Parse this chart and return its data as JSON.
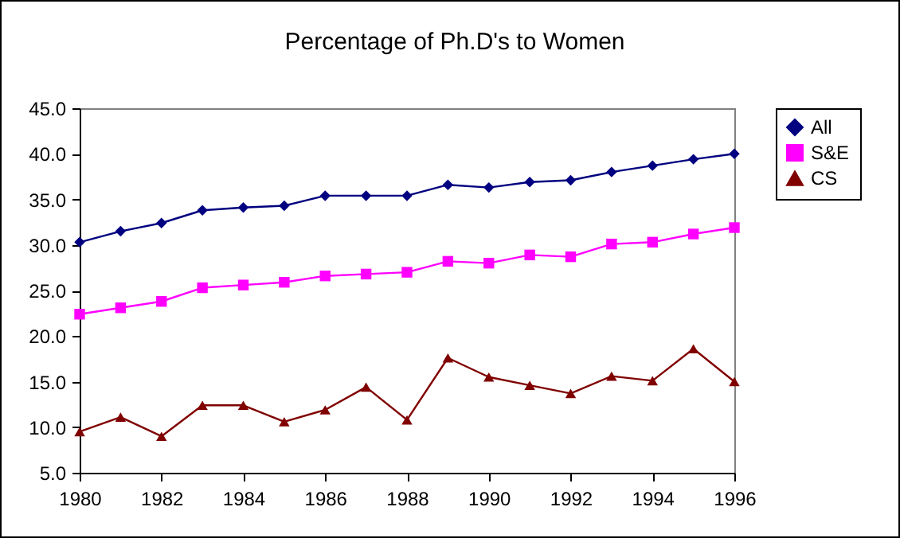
{
  "chart_data": {
    "type": "line",
    "title": "Percentage of Ph.D's to Women",
    "x": [
      1980,
      1981,
      1982,
      1983,
      1984,
      1985,
      1986,
      1987,
      1988,
      1989,
      1990,
      1991,
      1992,
      1993,
      1994,
      1995,
      1996
    ],
    "series": [
      {
        "name": "All",
        "color": "#000080",
        "marker": "diamond",
        "values": [
          30.3,
          31.5,
          32.4,
          33.8,
          34.1,
          34.3,
          35.4,
          35.4,
          35.4,
          36.6,
          36.3,
          36.9,
          37.1,
          38.0,
          38.7,
          39.4,
          40.0
        ]
      },
      {
        "name": "S&E",
        "color": "#ff00ff",
        "marker": "square",
        "values": [
          22.4,
          23.1,
          23.8,
          25.3,
          25.6,
          25.9,
          26.6,
          26.8,
          27.0,
          28.2,
          28.0,
          28.9,
          28.7,
          30.1,
          30.3,
          31.2,
          31.9
        ]
      },
      {
        "name": "CS",
        "color": "#800000",
        "marker": "triangle",
        "values": [
          9.5,
          11.1,
          9.0,
          12.4,
          12.4,
          10.6,
          11.9,
          14.4,
          10.8,
          17.6,
          15.5,
          14.6,
          13.7,
          15.6,
          15.1,
          18.6,
          15.0
        ]
      }
    ],
    "xlim": [
      1980,
      1996
    ],
    "xticks": [
      1980,
      1982,
      1984,
      1986,
      1988,
      1990,
      1992,
      1994,
      1996
    ],
    "ylim": [
      5,
      45
    ],
    "yticks": [
      {
        "value": 5,
        "label": "5.0"
      },
      {
        "value": 10,
        "label": "10.0"
      },
      {
        "value": 15,
        "label": "15.0"
      },
      {
        "value": 20,
        "label": "20.0"
      },
      {
        "value": 25,
        "label": "25.0"
      },
      {
        "value": 30,
        "label": "30.0"
      },
      {
        "value": 35,
        "label": "35.0"
      },
      {
        "value": 40,
        "label": "40.0"
      },
      {
        "value": 45,
        "label": "45.0"
      }
    ],
    "grid": false,
    "legend": "right",
    "line_style": "solid"
  }
}
